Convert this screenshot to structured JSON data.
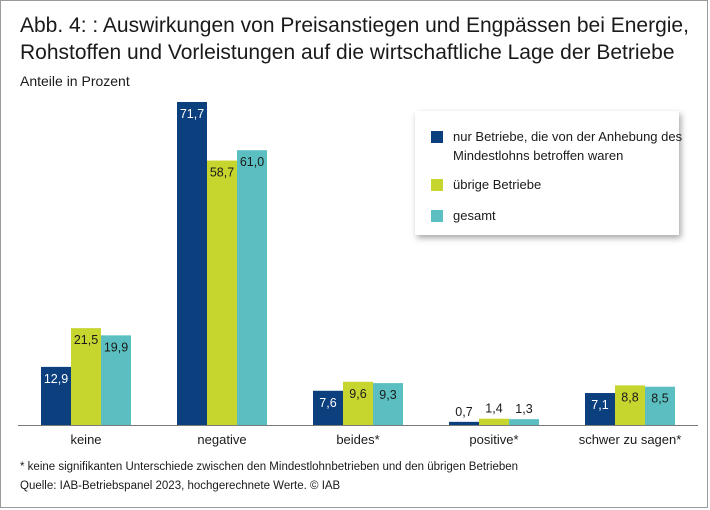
{
  "title": "Abb. 4: : Auswirkungen von Preisanstiegen und Engpässen bei Energie, Rohstoffen und Vorleistungen auf die wirtschaftliche Lage der Betriebe",
  "subtitle": "Anteile in Prozent",
  "legend": [
    {
      "label": "nur Betriebe, die von der Anhebung des Mindestlohns betroffen waren",
      "color": "#0b3f7e"
    },
    {
      "label": "übrige Betriebe",
      "color": "#c7d52f"
    },
    {
      "label": "gesamt",
      "color": "#5bbfc1"
    }
  ],
  "footnote": "* keine signifikanten Unterschiede zwischen den Mindestlohnbetrieben und den übrigen Betrieben",
  "source": "Quelle: IAB-Betriebspanel 2023, hochgerechnete Werte.  © IAB",
  "chart_data": {
    "type": "bar",
    "title": "Abb. 4: : Auswirkungen von Preisanstiegen und Engpässen bei Energie, Rohstoffen und Vorleistungen auf die wirtschaftliche Lage der Betriebe",
    "ylabel": "Anteile in Prozent",
    "xlabel": "",
    "ylim": [
      0,
      75
    ],
    "categories": [
      "keine",
      "negative",
      "beides*",
      "positive*",
      "schwer zu sagen*"
    ],
    "series": [
      {
        "name": "nur Betriebe, die von der Anhebung des Mindestlohns betroffen waren",
        "color": "#0b3f7e",
        "values": [
          12.9,
          71.7,
          7.6,
          0.7,
          7.1
        ],
        "labels": [
          "12,9",
          "71,7",
          "7,6",
          "0,7",
          "7,1"
        ]
      },
      {
        "name": "übrige Betriebe",
        "color": "#c7d52f",
        "values": [
          21.5,
          58.7,
          9.6,
          1.4,
          8.8
        ],
        "labels": [
          "21,5",
          "58,7",
          "9,6",
          "1,4",
          "8,8"
        ]
      },
      {
        "name": "gesamt",
        "color": "#5bbfc1",
        "values": [
          19.9,
          61.0,
          9.3,
          1.3,
          8.5
        ],
        "labels": [
          "19,9",
          "61,0",
          "9,3",
          "1,3",
          "8,5"
        ]
      }
    ]
  }
}
